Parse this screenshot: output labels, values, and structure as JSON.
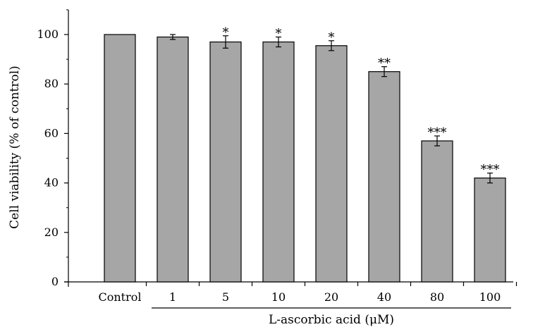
{
  "chart_data": {
    "type": "bar",
    "title": "",
    "xlabel": "L-ascorbic acid (μM)",
    "ylabel": "Cell viability (% of control)",
    "ylim": [
      0,
      110
    ],
    "yticks": [
      0,
      20,
      40,
      60,
      80,
      100
    ],
    "categories": [
      "Control",
      "1",
      "5",
      "10",
      "20",
      "40",
      "80",
      "100"
    ],
    "values": [
      100,
      99,
      97,
      97,
      95.5,
      85,
      57,
      42
    ],
    "errors": [
      0,
      1,
      2.5,
      2,
      2,
      2,
      2,
      2
    ],
    "significance": [
      "",
      "",
      "*",
      "*",
      "*",
      "**",
      "***",
      "***"
    ],
    "group_label": {
      "text": "L-ascorbic acid (μM)",
      "from_category": "1",
      "to_category": "100"
    },
    "grid": false,
    "legend": "none",
    "bar_color": "#a6a6a6",
    "edge_color": "#000000"
  }
}
